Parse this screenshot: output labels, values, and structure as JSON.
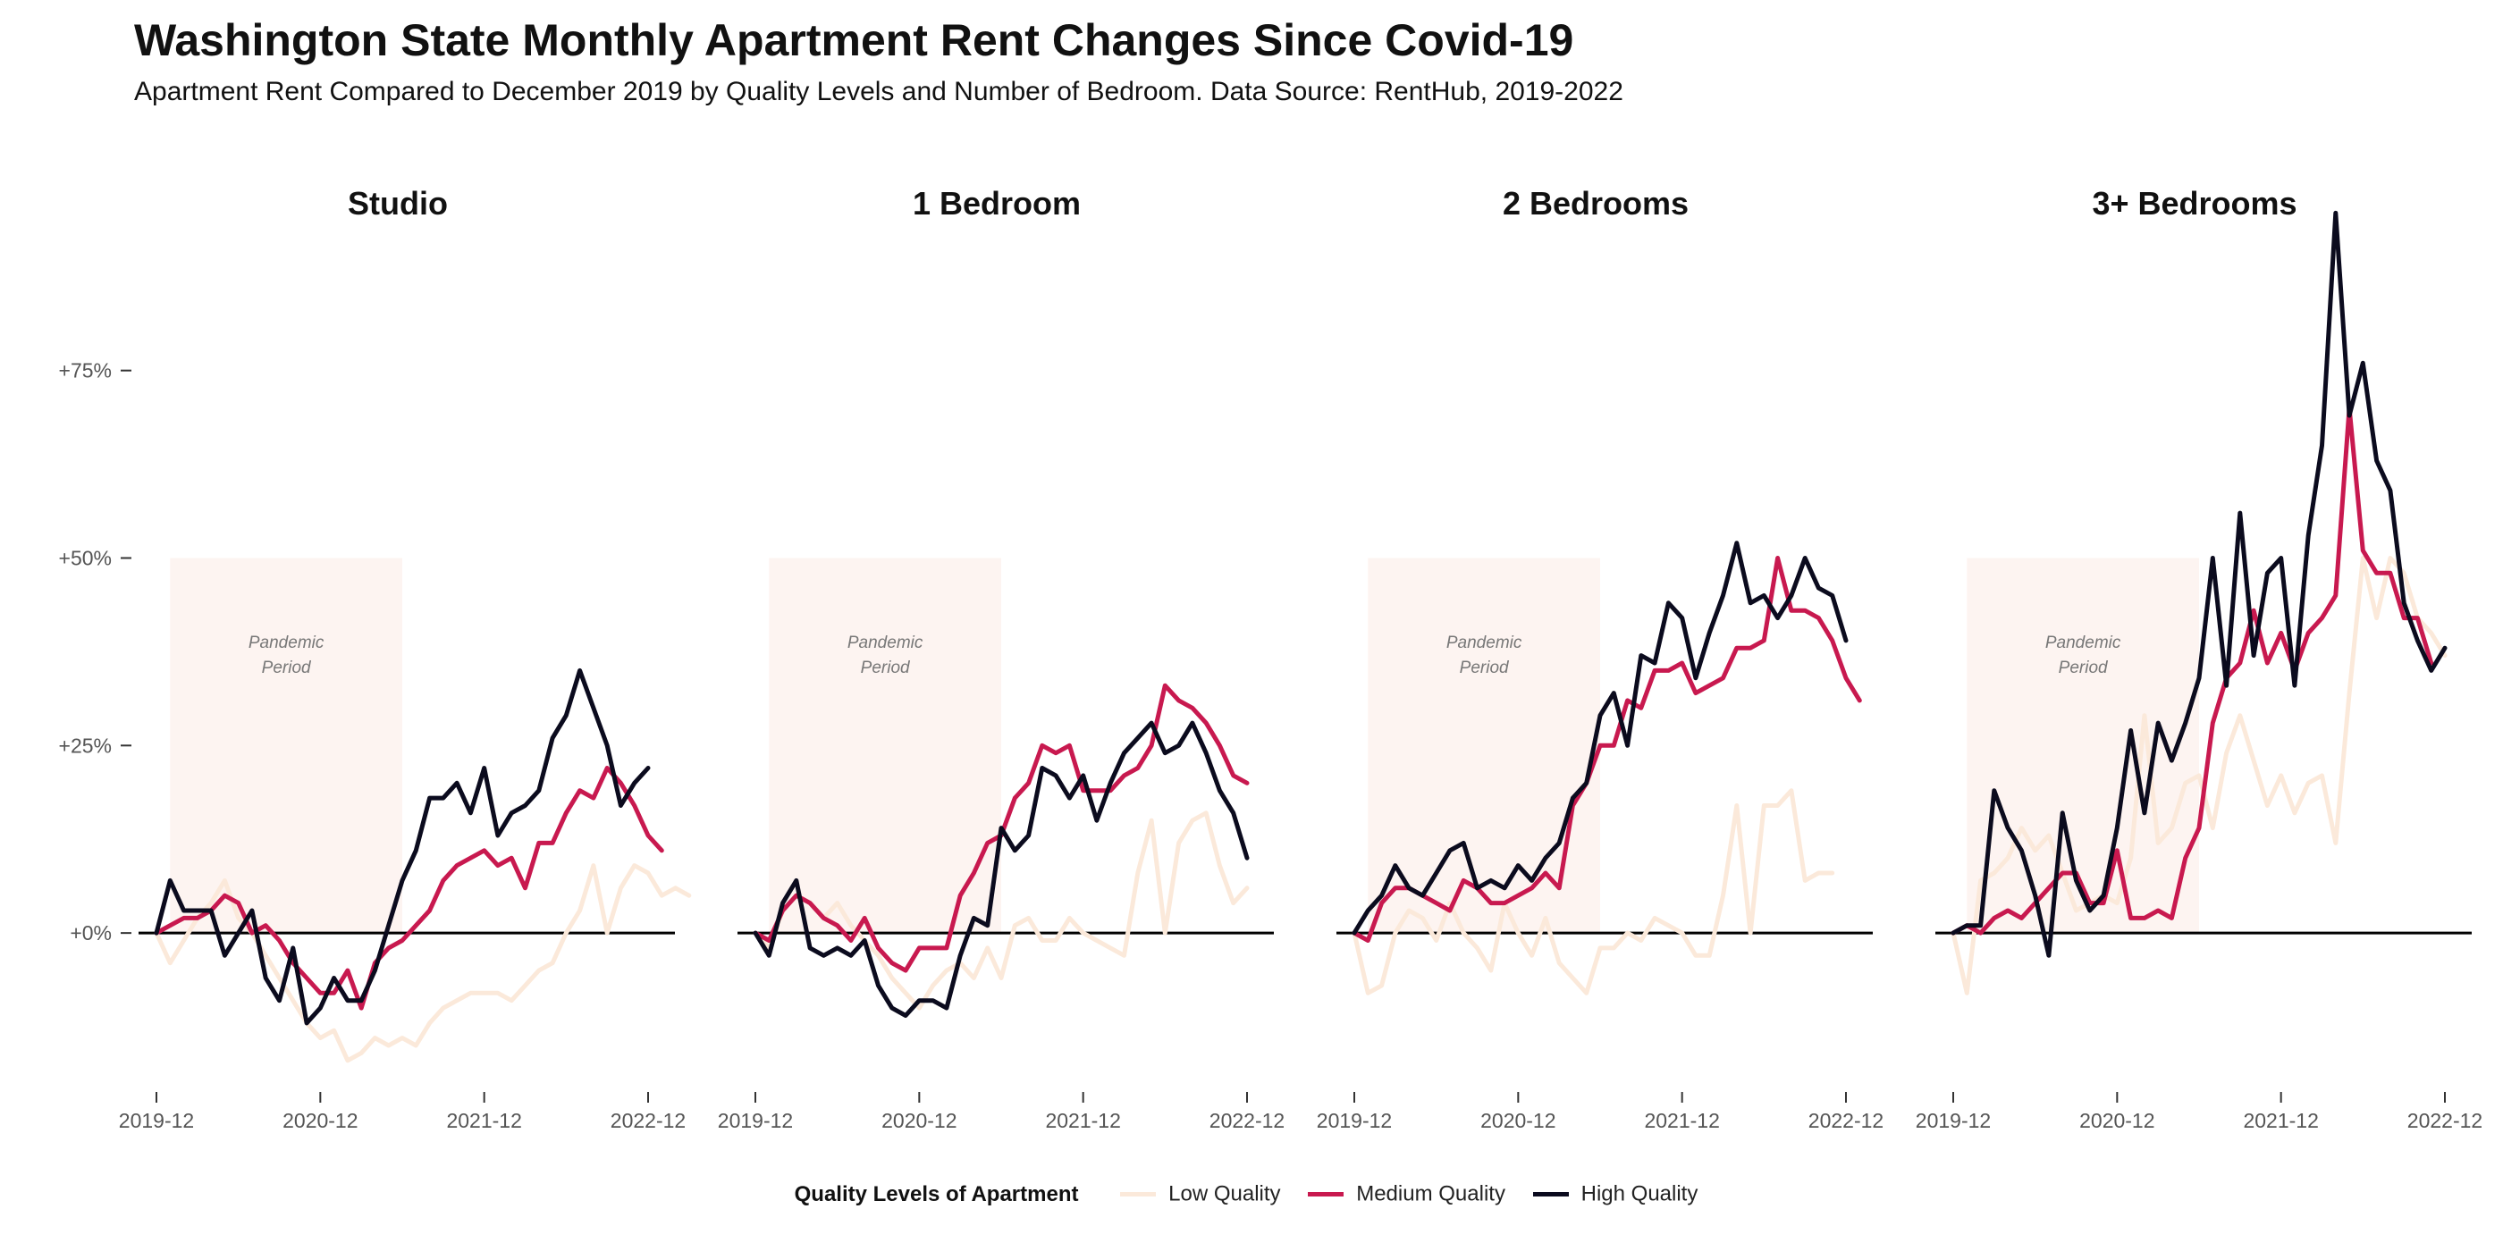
{
  "title": "Washington State Monthly Apartment Rent Changes Since Covid-19",
  "subtitle": "Apartment Rent Compared to December 2019 by Quality Levels and Number of Bedroom. Data Source: RentHub, 2019-2022",
  "legend": {
    "title": "Quality Levels of Apartment",
    "items": [
      {
        "label": "Low Quality",
        "color": "#fbe9da"
      },
      {
        "label": "Medium Quality",
        "color": "#c8194f"
      },
      {
        "label": "High Quality",
        "color": "#0b0b1e"
      }
    ]
  },
  "chart_data": {
    "type": "line",
    "x_start": "2019-12",
    "x_step": "1 month",
    "x_ticks": [
      "2019-12",
      "2020-12",
      "2021-12",
      "2022-12"
    ],
    "y_ticks": [
      "+0%",
      "+25%",
      "+50%",
      "+75%"
    ],
    "y_tick_values": [
      0,
      25,
      50,
      75
    ],
    "ylim": [
      -20,
      97
    ],
    "annotation": {
      "text": [
        "Pandemic",
        "Period"
      ],
      "from": "2020-01",
      "to": "2021-06",
      "y_range": [
        0,
        50
      ]
    },
    "panels": [
      {
        "name": "Studio",
        "series": [
          {
            "name": "Low Quality",
            "values": [
              0,
              -4,
              -1,
              2,
              4,
              7,
              2,
              0,
              -3,
              -6,
              -9,
              -12,
              -14,
              -13,
              -17,
              -16,
              -14,
              -15,
              -14,
              -15,
              -12,
              -10,
              -9,
              -8,
              -8,
              -8,
              -9,
              -7,
              -5,
              -4,
              0,
              3,
              9,
              0,
              6,
              9,
              8,
              5,
              6,
              5
            ]
          },
          {
            "name": "Medium Quality",
            "values": [
              0,
              1,
              2,
              2,
              3,
              5,
              4,
              0,
              1,
              -1,
              -4,
              -6,
              -8,
              -8,
              -5,
              -10,
              -4,
              -2,
              -1,
              1,
              3,
              7,
              9,
              10,
              11,
              9,
              10,
              6,
              12,
              12,
              16,
              19,
              18,
              22,
              20,
              17,
              13,
              11
            ]
          },
          {
            "name": "High Quality",
            "values": [
              0,
              7,
              3,
              3,
              3,
              -3,
              0,
              3,
              -6,
              -9,
              -2,
              -12,
              -10,
              -6,
              -9,
              -9,
              -5,
              1,
              7,
              11,
              18,
              18,
              20,
              16,
              22,
              13,
              16,
              17,
              19,
              26,
              29,
              35,
              30,
              25,
              17,
              20,
              22
            ]
          }
        ]
      },
      {
        "name": "1 Bedroom",
        "series": [
          {
            "name": "Low Quality",
            "values": [
              0,
              -2,
              3,
              5,
              4,
              2,
              4,
              1,
              -1,
              -3,
              -6,
              -8,
              -10,
              -7,
              -5,
              -4,
              -6,
              -2,
              -6,
              1,
              2,
              -1,
              -1,
              2,
              0,
              -1,
              -2,
              -3,
              8,
              15,
              0,
              12,
              15,
              16,
              9,
              4,
              6
            ]
          },
          {
            "name": "Medium Quality",
            "values": [
              0,
              -1,
              3,
              5,
              4,
              2,
              1,
              -1,
              2,
              -2,
              -4,
              -5,
              -2,
              -2,
              -2,
              5,
              8,
              12,
              13,
              18,
              20,
              25,
              24,
              25,
              19,
              19,
              19,
              21,
              22,
              25,
              33,
              31,
              30,
              28,
              25,
              21,
              20
            ]
          },
          {
            "name": "High Quality",
            "values": [
              0,
              -3,
              4,
              7,
              -2,
              -3,
              -2,
              -3,
              -1,
              -7,
              -10,
              -11,
              -9,
              -9,
              -10,
              -3,
              2,
              1,
              14,
              11,
              13,
              22,
              21,
              18,
              21,
              15,
              20,
              24,
              26,
              28,
              24,
              25,
              28,
              24,
              19,
              16,
              10
            ]
          }
        ]
      },
      {
        "name": "2 Bedrooms",
        "series": [
          {
            "name": "Low Quality",
            "values": [
              0,
              -8,
              -7,
              0,
              3,
              2,
              -1,
              4,
              0,
              -2,
              -5,
              4,
              0,
              -3,
              2,
              -4,
              -6,
              -8,
              -2,
              -2,
              0,
              -1,
              2,
              1,
              0,
              -3,
              -3,
              5,
              17,
              0,
              17,
              17,
              19,
              7,
              8,
              8
            ]
          },
          {
            "name": "Medium Quality",
            "values": [
              0,
              -1,
              4,
              6,
              6,
              5,
              4,
              3,
              7,
              6,
              4,
              4,
              5,
              6,
              8,
              6,
              17,
              20,
              25,
              25,
              31,
              30,
              35,
              35,
              36,
              32,
              33,
              34,
              38,
              38,
              39,
              50,
              43,
              43,
              42,
              39,
              34,
              31
            ]
          },
          {
            "name": "High Quality",
            "values": [
              0,
              3,
              5,
              9,
              6,
              5,
              8,
              11,
              12,
              6,
              7,
              6,
              9,
              7,
              10,
              12,
              18,
              20,
              29,
              32,
              25,
              37,
              36,
              44,
              42,
              34,
              40,
              45,
              52,
              44,
              45,
              42,
              45,
              50,
              46,
              45,
              39
            ]
          }
        ]
      },
      {
        "name": "3+ Bedrooms",
        "series": [
          {
            "name": "Low Quality",
            "values": [
              0,
              -8,
              7,
              8,
              10,
              14,
              11,
              13,
              8,
              3,
              4,
              5,
              4,
              10,
              29,
              12,
              14,
              20,
              21,
              14,
              24,
              29,
              23,
              17,
              21,
              16,
              20,
              21,
              12,
              32,
              50,
              42,
              50,
              48,
              42,
              40,
              37
            ]
          },
          {
            "name": "Medium Quality",
            "values": [
              0,
              1,
              0,
              2,
              3,
              2,
              4,
              6,
              8,
              8,
              4,
              4,
              11,
              2,
              2,
              3,
              2,
              10,
              14,
              28,
              34,
              36,
              43,
              36,
              40,
              35,
              40,
              42,
              45,
              70,
              51,
              48,
              48,
              42,
              42,
              36
            ]
          },
          {
            "name": "High Quality",
            "values": [
              0,
              1,
              1,
              19,
              14,
              11,
              5,
              -3,
              16,
              7,
              3,
              5,
              14,
              27,
              16,
              28,
              23,
              28,
              34,
              50,
              33,
              56,
              37,
              48,
              50,
              33,
              53,
              65,
              96,
              69,
              76,
              63,
              59,
              44,
              39,
              35,
              38
            ]
          }
        ]
      }
    ]
  }
}
